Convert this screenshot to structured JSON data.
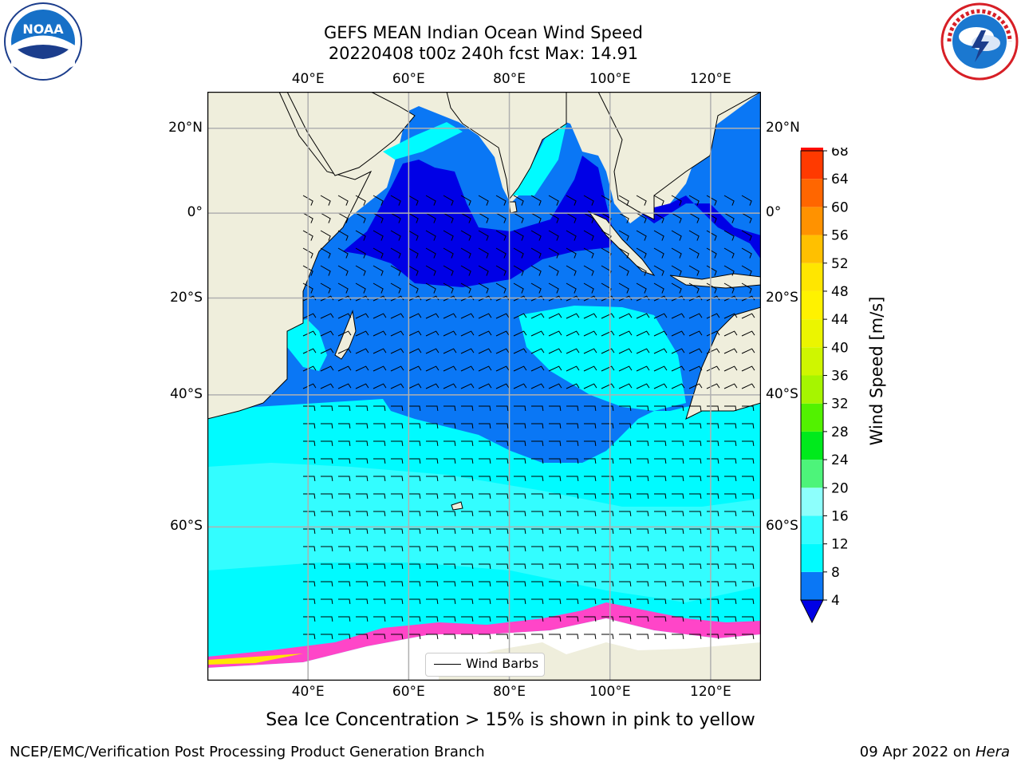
{
  "header": {
    "title_line1": "GEFS MEAN Indian Ocean Wind Speed",
    "title_line2": "20220408 t00z 240h fcst   Max: 14.91"
  },
  "logos": {
    "noaa": {
      "text": "NOAA",
      "icon": "noaa-logo-icon"
    },
    "nws": {
      "icon": "nws-logo-icon"
    }
  },
  "map": {
    "lon_labels": [
      "40°E",
      "60°E",
      "80°E",
      "100°E",
      "120°E"
    ],
    "lon_values": [
      40,
      60,
      80,
      100,
      120
    ],
    "lat_labels": [
      "20°N",
      "0°",
      "20°S",
      "40°S",
      "60°S"
    ],
    "lat_values": [
      20,
      0,
      -20,
      -40,
      -60
    ],
    "lon_range": [
      20,
      130
    ],
    "lat_range": [
      -74,
      28
    ],
    "legend_label": "Wind Barbs",
    "colors": {
      "land": "#efeedc",
      "ocean_lt8": "#0a77f5",
      "ocean_lt4": "#0000e6",
      "ocean_8_12": "#00fbff",
      "ocean_12_16": "#33fdff",
      "sea_ice": "#ff45c8",
      "antarctic_ice": "#ffffff"
    }
  },
  "colorbar": {
    "label": "Wind Speed [m/s]",
    "ticks": [
      "4",
      "8",
      "12",
      "16",
      "20",
      "24",
      "28",
      "32",
      "36",
      "40",
      "44",
      "48",
      "52",
      "56",
      "60",
      "64",
      "68"
    ],
    "colors": [
      "#0a77f5",
      "#00fbff",
      "#33fdff",
      "#8dfffc",
      "#4df47a",
      "#00ea1c",
      "#52f200",
      "#a6f500",
      "#cff600",
      "#ebf500",
      "#fff200",
      "#ffe600",
      "#ffc000",
      "#ff9200",
      "#ff6600",
      "#ff3a00",
      "#ff0d00"
    ],
    "extend_color": "#0000e6"
  },
  "footer": {
    "ice_note": "Sea Ice Concentration > 15% is shown in pink to yellow",
    "left": "NCEP/EMC/Verification Post Processing Product Generation Branch",
    "date": "09 Apr 2022 on ",
    "host": "Hera"
  }
}
